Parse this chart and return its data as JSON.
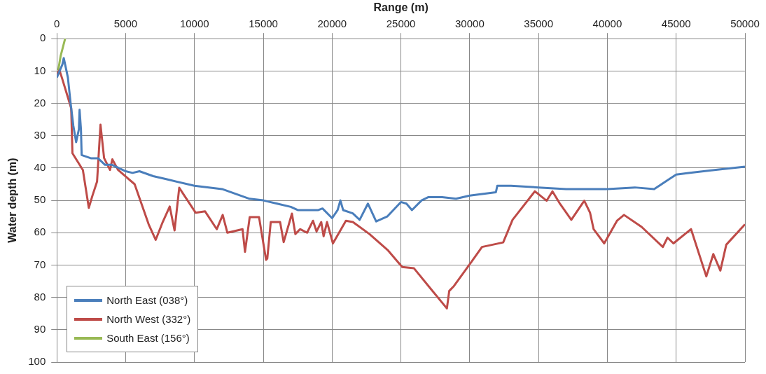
{
  "chart_data": {
    "type": "line",
    "xlabel": "Range (m)",
    "ylabel": "Water depth (m)",
    "xlim": [
      0,
      50000
    ],
    "xticks": [
      0,
      5000,
      10000,
      15000,
      20000,
      25000,
      30000,
      35000,
      40000,
      45000,
      50000
    ],
    "ylim": [
      100,
      0
    ],
    "yticks": [
      0,
      10,
      20,
      30,
      40,
      50,
      60,
      70,
      80,
      90,
      100
    ],
    "grid": true,
    "legend": "bottom left",
    "marker": "none",
    "series": [
      {
        "name": "North East (038°)",
        "color": "#4a7ebb",
        "x": [
          0,
          200,
          400,
          500,
          600,
          800,
          1000,
          1200,
          1400,
          1600,
          1650,
          1750,
          1800,
          2500,
          3000,
          3500,
          4000,
          4500,
          5000,
          5500,
          6000,
          7000,
          8000,
          10000,
          12000,
          13000,
          14000,
          15000,
          16000,
          17000,
          17500,
          19000,
          19300,
          20000,
          20400,
          20600,
          20800,
          21500,
          22000,
          22600,
          23200,
          24000,
          25000,
          25400,
          25800,
          26500,
          27000,
          28000,
          29000,
          30000,
          31000,
          31900,
          32000,
          33000,
          35000,
          37000,
          40000,
          42000,
          43400,
          45000,
          46000,
          48000,
          50000
        ],
        "values": [
          12,
          10,
          8,
          6,
          8,
          12,
          20,
          27,
          32,
          28,
          22,
          28,
          36,
          37,
          37,
          39,
          39,
          40,
          41,
          41.5,
          41,
          42.5,
          43.5,
          45.5,
          46.5,
          48,
          49.5,
          50,
          51,
          52,
          53,
          53,
          52.5,
          55.5,
          53,
          50,
          53,
          54,
          56,
          51,
          56.5,
          55,
          50.5,
          51,
          53,
          50,
          49,
          49,
          49.5,
          48.5,
          48,
          47.5,
          45.5,
          45.5,
          46,
          46.5,
          46.5,
          46,
          46.5,
          42,
          41.5,
          40.5,
          39.6
        ]
      },
      {
        "name": "North West (332°)",
        "color": "#be4b48",
        "x": [
          0,
          190,
          360,
          1040,
          1130,
          1890,
          2320,
          2580,
          2920,
          3170,
          3430,
          3860,
          4030,
          4450,
          5650,
          6670,
          7180,
          7690,
          8200,
          8550,
          8890,
          10080,
          10770,
          11620,
          12050,
          12390,
          13490,
          13670,
          14010,
          14690,
          15200,
          15290,
          15540,
          16220,
          16480,
          17080,
          17330,
          17670,
          18180,
          18610,
          18870,
          19210,
          19380,
          19630,
          20060,
          21000,
          21510,
          22710,
          24070,
          25090,
          25950,
          27140,
          28340,
          28510,
          28850,
          30040,
          30890,
          32430,
          33110,
          34730,
          35590,
          36010,
          36520,
          37380,
          38320,
          38740,
          39000,
          39770,
          40700,
          41210,
          42490,
          44030,
          44370,
          44800,
          46080,
          47190,
          47700,
          48210,
          48640,
          50000
        ],
        "values": [
          11,
          9.8,
          12,
          21.5,
          35.4,
          40.6,
          52.3,
          48.6,
          44.2,
          26.6,
          36.9,
          40.6,
          37.3,
          40.6,
          45,
          57.4,
          62.2,
          56.7,
          51.9,
          59.3,
          46.1,
          53.8,
          53.4,
          58.9,
          54.5,
          60,
          58.9,
          65.9,
          55.2,
          55.2,
          68.4,
          68,
          56.7,
          56.7,
          62.9,
          54.1,
          60.4,
          58.9,
          60,
          56.3,
          59.6,
          56.7,
          61.1,
          56.7,
          63.3,
          56.3,
          56.7,
          60.4,
          65.5,
          70.6,
          71,
          77.2,
          83.4,
          78,
          76.5,
          69.5,
          64.4,
          63,
          56,
          47.2,
          50.1,
          47.2,
          50.8,
          56,
          50.1,
          53.8,
          58.9,
          63.3,
          56.3,
          54.5,
          58.2,
          64.4,
          61.5,
          63.3,
          58.9,
          73.5,
          66.6,
          71.7,
          63.7,
          57.4
        ]
      },
      {
        "name": "South East (156°)",
        "color": "#98b954",
        "x": [
          100,
          270,
          600
        ],
        "values": [
          9.8,
          5.4,
          0
        ]
      }
    ]
  }
}
